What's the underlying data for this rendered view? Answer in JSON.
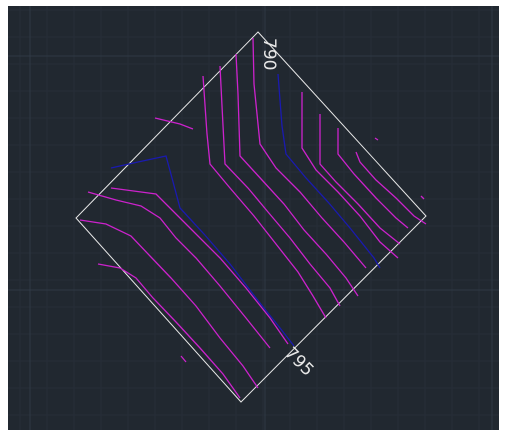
{
  "canvas": {
    "background": "#212830",
    "grid_major_color": "#2f3945",
    "grid_minor_color": "#262e38"
  },
  "colors": {
    "minor_contour": "#cc22cc",
    "index_contour": "#1a1ab0",
    "boundary": "#e8e8e8",
    "label": "#e6e6e6"
  },
  "labels": {
    "top_index": "790",
    "bottom_index": "795"
  }
}
